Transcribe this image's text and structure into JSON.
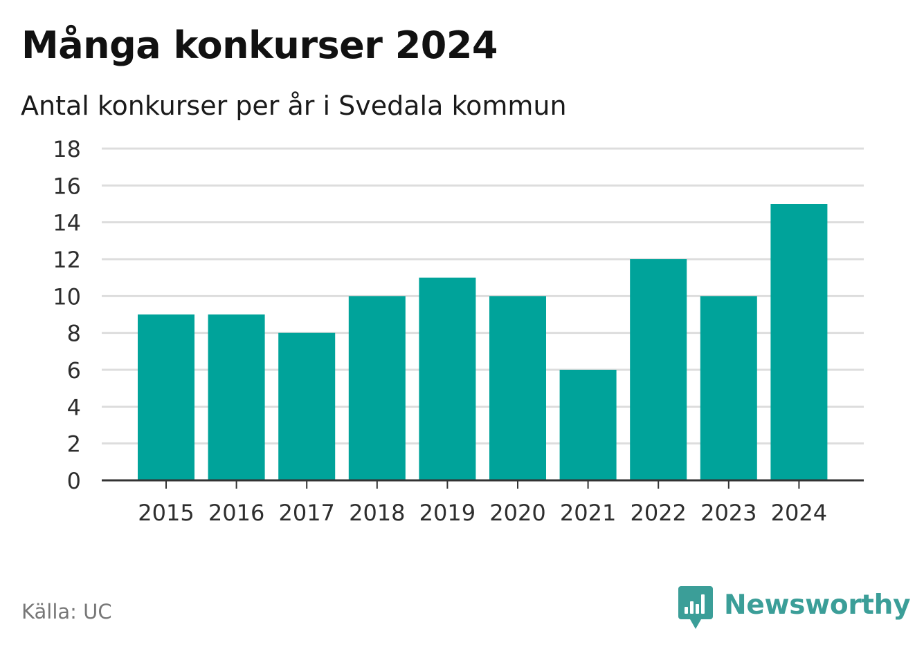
{
  "title": "Många konkurser 2024",
  "subtitle": "Antal konkurser per år i Svedala kommun",
  "source": "Källa: UC",
  "brand": {
    "name": "Newsworthy",
    "icon": "newsworthy-logo-icon",
    "color": "#3b9e98"
  },
  "colors": {
    "bar": "#00a39a",
    "grid": "#dddddd",
    "axis": "#333333"
  },
  "chart_data": {
    "type": "bar",
    "title": "Många konkurser 2024",
    "subtitle": "Antal konkurser per år i Svedala kommun",
    "categories": [
      "2015",
      "2016",
      "2017",
      "2018",
      "2019",
      "2020",
      "2021",
      "2022",
      "2023",
      "2024"
    ],
    "values": [
      9,
      9,
      8,
      10,
      11,
      10,
      6,
      12,
      10,
      15
    ],
    "ylim": [
      0,
      18
    ],
    "yticks": [
      0,
      2,
      4,
      6,
      8,
      10,
      12,
      14,
      16,
      18
    ],
    "grid": true,
    "legend": "none"
  }
}
